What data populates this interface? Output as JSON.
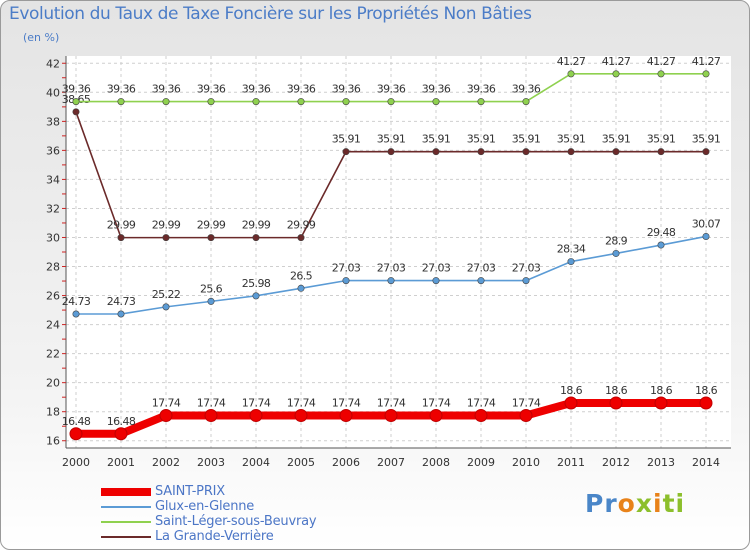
{
  "header": {
    "title": "Evolution du Taux de Taxe Foncière sur les Propriétés Non Bâties",
    "unit": "(en %)"
  },
  "logo": {
    "text": "Proxiti",
    "parts": [
      "Pr",
      "o",
      "x",
      "i",
      "ti"
    ]
  },
  "chart_data": {
    "type": "line",
    "title": "Evolution du Taux de Taxe Foncière sur les Propriétés Non Bâties",
    "ylabel": "(en %)",
    "xlabel": "",
    "x": [
      "2000",
      "2001",
      "2002",
      "2003",
      "2004",
      "2005",
      "2006",
      "2007",
      "2008",
      "2009",
      "2010",
      "2011",
      "2012",
      "2013",
      "2014"
    ],
    "ylim": [
      15.5,
      42.5
    ],
    "yticks": [
      "16",
      "18",
      "20",
      "22",
      "24",
      "26",
      "28",
      "30",
      "32",
      "34",
      "36",
      "38",
      "40",
      "42"
    ],
    "grid": true,
    "legend_position": "bottom-left",
    "series": [
      {
        "name": "SAINT-PRIX",
        "color": "#ee0000",
        "values": [
          16.48,
          16.48,
          17.74,
          17.74,
          17.74,
          17.74,
          17.74,
          17.74,
          17.74,
          17.74,
          17.74,
          18.6,
          18.6,
          18.6,
          18.6
        ],
        "labels": [
          "16.48",
          "16.48",
          "17.74",
          "17.74",
          "17.74",
          "17.74",
          "17.74",
          "17.74",
          "17.74",
          "17.74",
          "17.74",
          "18.6",
          "18.6",
          "18.6",
          "18.6"
        ]
      },
      {
        "name": "Glux-en-Glenne",
        "color": "#5b9bd5",
        "values": [
          24.73,
          24.73,
          25.22,
          25.6,
          25.98,
          26.5,
          27.03,
          27.03,
          27.03,
          27.03,
          27.03,
          28.34,
          28.9,
          29.48,
          30.07
        ],
        "labels": [
          "24.73",
          "24.73",
          "25.22",
          "25.6",
          "25.98",
          "26.5",
          "27.03",
          "27.03",
          "27.03",
          "27.03",
          "27.03",
          "28.34",
          "28.9",
          "29.48",
          "30.07"
        ]
      },
      {
        "name": "Saint-Léger-sous-Beuvray",
        "color": "#8fd14f",
        "values": [
          39.36,
          39.36,
          39.36,
          39.36,
          39.36,
          39.36,
          39.36,
          39.36,
          39.36,
          39.36,
          39.36,
          41.27,
          41.27,
          41.27,
          41.27
        ],
        "labels": [
          "39.36",
          "39.36",
          "39.36",
          "39.36",
          "39.36",
          "39.36",
          "39.36",
          "39.36",
          "39.36",
          "39.36",
          "39.36",
          "41.27",
          "41.27",
          "41.27",
          "41.27"
        ]
      },
      {
        "name": "La Grande-Verrière",
        "color": "#6b2a2a",
        "values": [
          38.65,
          29.99,
          29.99,
          29.99,
          29.99,
          29.99,
          35.91,
          35.91,
          35.91,
          35.91,
          35.91,
          35.91,
          35.91,
          35.91,
          35.91
        ],
        "labels": [
          "38.65",
          "29.99",
          "29.99",
          "29.99",
          "29.99",
          "29.99",
          "35.91",
          "35.91",
          "35.91",
          "35.91",
          "35.91",
          "35.91",
          "35.91",
          "35.91",
          "35.91"
        ]
      }
    ]
  }
}
